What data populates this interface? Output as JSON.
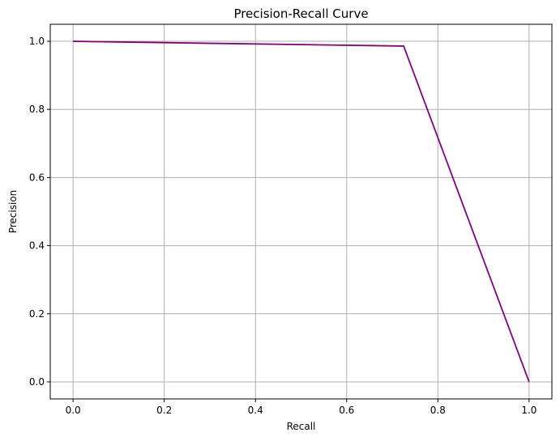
{
  "chart_data": {
    "type": "line",
    "title": "Precision-Recall Curve",
    "xlabel": "Recall",
    "ylabel": "Precision",
    "xlim": [
      -0.05,
      1.05
    ],
    "ylim": [
      -0.05,
      1.05
    ],
    "xticks": [
      0.0,
      0.2,
      0.4,
      0.6,
      0.8,
      1.0
    ],
    "yticks": [
      0.0,
      0.2,
      0.4,
      0.6,
      0.8,
      1.0
    ],
    "xtick_labels": [
      "0.0",
      "0.2",
      "0.4",
      "0.6",
      "0.8",
      "1.0"
    ],
    "ytick_labels": [
      "0.0",
      "0.2",
      "0.4",
      "0.6",
      "0.8",
      "1.0"
    ],
    "grid": true,
    "series": [
      {
        "color": "#800080",
        "x": [
          0.0,
          0.725,
          1.0
        ],
        "y": [
          1.0,
          0.986,
          0.0
        ]
      }
    ]
  }
}
